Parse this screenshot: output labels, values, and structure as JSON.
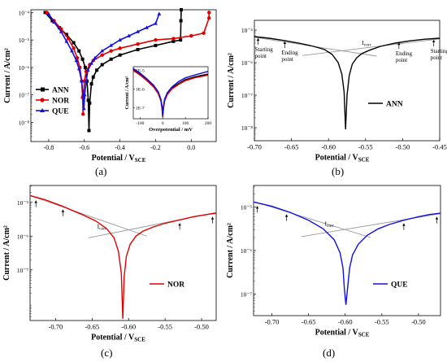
{
  "figure": {
    "panel_labels": [
      "(a)",
      "(b)",
      "(c)",
      "(d)"
    ]
  },
  "chart_data": [
    {
      "id": "a",
      "type": "line",
      "xlabel": "Potential / V",
      "xlabel_sub": "SCE",
      "ylabel": "Current / A/cm²",
      "xlim": [
        -0.9,
        0.14
      ],
      "ylim_log10": [
        -8.7,
        -3.9
      ],
      "log_y": true,
      "xticks": [
        -0.8,
        -0.6,
        -0.4,
        -0.2,
        0.0
      ],
      "xtick_labels": [
        "-0.8",
        "-0.6",
        "-0.4",
        "-0.2",
        "0.0"
      ],
      "yticks_log10": [
        -8,
        -7,
        -6,
        -5,
        -4
      ],
      "ytick_labels": [
        "10⁻⁸",
        "10⁻⁷",
        "10⁻⁶",
        "10⁻⁵",
        "10⁻⁴"
      ],
      "legend": {
        "position": "bottom-left",
        "entries": [
          {
            "label": "ANN",
            "color": "#000000",
            "marker": "square"
          },
          {
            "label": "NOR",
            "color": "#e00000",
            "marker": "circle"
          },
          {
            "label": "QUE",
            "color": "#1010e0",
            "marker": "triangle"
          }
        ]
      },
      "series": [
        {
          "name": "ANN",
          "color": "#000000",
          "x": [
            -0.82,
            -0.78,
            -0.74,
            -0.7,
            -0.66,
            -0.63,
            -0.61,
            -0.595,
            -0.585,
            -0.578,
            -0.574,
            -0.57,
            -0.56,
            -0.55,
            -0.53,
            -0.5,
            -0.45,
            -0.4,
            -0.3,
            -0.2,
            -0.1,
            -0.06,
            -0.058,
            -0.056
          ],
          "logy": [
            -4.0,
            -4.3,
            -4.55,
            -4.8,
            -5.1,
            -5.4,
            -5.7,
            -6.0,
            -6.5,
            -7.2,
            -8.3,
            -7.3,
            -6.6,
            -6.35,
            -6.1,
            -5.9,
            -5.7,
            -5.55,
            -5.35,
            -5.2,
            -5.05,
            -5.0,
            -4.3,
            -3.9
          ]
        },
        {
          "name": "NOR",
          "color": "#e00000",
          "x": [
            -0.81,
            -0.77,
            -0.73,
            -0.69,
            -0.66,
            -0.64,
            -0.625,
            -0.615,
            -0.61,
            -0.607,
            -0.604,
            -0.6,
            -0.59,
            -0.57,
            -0.55,
            -0.5,
            -0.45,
            -0.4,
            -0.3,
            -0.2,
            -0.1,
            0.0,
            0.07,
            0.1,
            0.1
          ],
          "logy": [
            -4.0,
            -4.3,
            -4.6,
            -4.95,
            -5.3,
            -5.65,
            -6.0,
            -6.5,
            -7.1,
            -7.7,
            -7.1,
            -6.5,
            -6.15,
            -5.9,
            -5.75,
            -5.55,
            -5.4,
            -5.3,
            -5.15,
            -5.0,
            -4.95,
            -4.85,
            -4.75,
            -4.2,
            -4.0
          ]
        },
        {
          "name": "QUE",
          "color": "#1010e0",
          "x": [
            -0.8,
            -0.77,
            -0.73,
            -0.7,
            -0.67,
            -0.645,
            -0.63,
            -0.615,
            -0.607,
            -0.602,
            -0.598,
            -0.59,
            -0.58,
            -0.56,
            -0.54,
            -0.5,
            -0.45,
            -0.4,
            -0.35,
            -0.3,
            -0.25,
            -0.2,
            -0.18
          ],
          "logy": [
            -4.05,
            -4.35,
            -4.7,
            -5.05,
            -5.4,
            -5.75,
            -6.05,
            -6.5,
            -7.0,
            -7.5,
            -7.0,
            -6.5,
            -6.1,
            -5.85,
            -5.65,
            -5.4,
            -5.2,
            -5.0,
            -4.85,
            -4.7,
            -4.55,
            -4.4,
            -4.05
          ]
        }
      ],
      "inset": {
        "xlabel": "Overpotential / mV",
        "ylabel": "Current / A/cm²",
        "xlim": [
          -130,
          200
        ],
        "ylim_log10": [
          -7.6,
          -4.8
        ],
        "xticks": [
          -100,
          0,
          100,
          200
        ],
        "xtick_labels": [
          "-100",
          "0",
          "100",
          "200"
        ],
        "yticks_log10": [
          -7,
          -6,
          -5
        ],
        "ytick_labels": [
          "1E-7",
          "1E-6",
          "1E-5"
        ],
        "series": [
          {
            "name": "ANN",
            "color": "#000000",
            "x": [
              -130,
              -100,
              -70,
              -40,
              -20,
              -8,
              -3,
              0,
              3,
              8,
              20,
              40,
              70,
              100,
              140,
              200
            ],
            "logy": [
              -4.95,
              -5.2,
              -5.5,
              -5.85,
              -6.2,
              -6.6,
              -7.0,
              -7.5,
              -7.0,
              -6.6,
              -6.25,
              -5.95,
              -5.7,
              -5.5,
              -5.35,
              -5.2
            ]
          },
          {
            "name": "NOR",
            "color": "#e00000",
            "x": [
              -130,
              -100,
              -70,
              -40,
              -20,
              -8,
              -3,
              0,
              3,
              8,
              20,
              40,
              70,
              100,
              140,
              200
            ],
            "logy": [
              -5.0,
              -5.25,
              -5.55,
              -5.9,
              -6.25,
              -6.65,
              -7.05,
              -7.45,
              -7.05,
              -6.65,
              -6.3,
              -6.0,
              -5.75,
              -5.55,
              -5.4,
              -5.25
            ]
          },
          {
            "name": "QUE",
            "color": "#1010e0",
            "x": [
              -130,
              -100,
              -70,
              -40,
              -20,
              -8,
              -3,
              0,
              3,
              8,
              20,
              40,
              70,
              100,
              140,
              200
            ],
            "logy": [
              -4.9,
              -5.15,
              -5.45,
              -5.8,
              -6.15,
              -6.55,
              -6.95,
              -7.4,
              -6.95,
              -6.55,
              -6.2,
              -5.9,
              -5.6,
              -5.4,
              -5.25,
              -5.05
            ]
          }
        ]
      }
    },
    {
      "id": "b",
      "type": "line",
      "xlabel": "Potential / V",
      "xlabel_sub": "SCE",
      "ylabel": "Current / A/cm²",
      "xlim": [
        -0.7,
        -0.45
      ],
      "ylim_log10": [
        -8.4,
        -4.7
      ],
      "log_y": true,
      "xticks": [
        -0.7,
        -0.65,
        -0.6,
        -0.55,
        -0.5,
        -0.45
      ],
      "xtick_labels": [
        "-0.70",
        "-0.65",
        "-0.60",
        "-0.55",
        "-0.50",
        "-0.45"
      ],
      "yticks_log10": [
        -8,
        -7,
        -6,
        -5
      ],
      "ytick_labels": [
        "10⁻⁸",
        "10⁻⁷",
        "10⁻⁶",
        "10⁻⁵"
      ],
      "legend": {
        "position": "center-right",
        "entries": [
          {
            "label": "ANN",
            "color": "#000000"
          }
        ]
      },
      "series": [
        {
          "name": "ANN",
          "color": "#000000",
          "x": [
            -0.7,
            -0.68,
            -0.66,
            -0.64,
            -0.62,
            -0.605,
            -0.595,
            -0.587,
            -0.582,
            -0.579,
            -0.577,
            -0.575,
            -0.572,
            -0.568,
            -0.562,
            -0.555,
            -0.545,
            -0.53,
            -0.51,
            -0.49,
            -0.47,
            -0.45
          ],
          "logy": [
            -5.2,
            -5.25,
            -5.32,
            -5.4,
            -5.5,
            -5.6,
            -5.75,
            -6.0,
            -6.35,
            -6.9,
            -8.05,
            -7.0,
            -6.4,
            -6.05,
            -5.85,
            -5.72,
            -5.62,
            -5.5,
            -5.4,
            -5.33,
            -5.28,
            -5.25
          ]
        }
      ],
      "tafel_lines": [
        {
          "x": [
            -0.7,
            -0.535
          ],
          "logy": [
            -5.22,
            -5.8
          ]
        },
        {
          "x": [
            -0.635,
            -0.45
          ],
          "logy": [
            -5.78,
            -5.27
          ]
        }
      ],
      "annotations": [
        {
          "text": "Starting",
          "text2": "point",
          "x": -0.695,
          "logy": -5.2
        },
        {
          "text": "Ending",
          "text2": "point",
          "x": -0.659,
          "logy": -5.3
        },
        {
          "text": "I",
          "sub": "corr",
          "x": -0.555,
          "logy": -5.53
        },
        {
          "text": "Ending",
          "text2": "point",
          "x": -0.505,
          "logy": -5.33
        },
        {
          "text": "Starting",
          "text2": "point",
          "x": -0.458,
          "logy": -5.25
        }
      ]
    },
    {
      "id": "c",
      "type": "line",
      "xlabel": "Potential / V",
      "xlabel_sub": "SCE",
      "ylabel": "Current / A/cm²",
      "xlim": [
        -0.735,
        -0.48
      ],
      "ylim_log10": [
        -8.5,
        -4.5
      ],
      "log_y": true,
      "xticks": [
        -0.7,
        -0.65,
        -0.6,
        -0.55,
        -0.5
      ],
      "xtick_labels": [
        "-0.70",
        "-0.65",
        "-0.60",
        "-0.55",
        "-0.50"
      ],
      "yticks_log10": [
        -7,
        -6,
        -5
      ],
      "ytick_labels": [
        "10⁻⁷",
        "10⁻⁶",
        "10⁻⁵"
      ],
      "legend": {
        "position": "center-right",
        "entries": [
          {
            "label": "NOR",
            "color": "#e00000"
          }
        ]
      },
      "series": [
        {
          "name": "NOR",
          "color": "#e00000",
          "x": [
            -0.735,
            -0.715,
            -0.69,
            -0.665,
            -0.645,
            -0.63,
            -0.62,
            -0.614,
            -0.61,
            -0.608,
            -0.606,
            -0.603,
            -0.598,
            -0.59,
            -0.58,
            -0.565,
            -0.55,
            -0.53,
            -0.51,
            -0.49,
            -0.48
          ],
          "logy": [
            -4.8,
            -4.92,
            -5.12,
            -5.35,
            -5.55,
            -5.78,
            -6.05,
            -6.45,
            -7.1,
            -8.45,
            -7.2,
            -6.6,
            -6.25,
            -6.0,
            -5.85,
            -5.72,
            -5.62,
            -5.52,
            -5.42,
            -5.35,
            -5.32
          ]
        }
      ],
      "tafel_lines": [
        {
          "x": [
            -0.735,
            -0.575
          ],
          "logy": [
            -4.8,
            -6.0
          ]
        },
        {
          "x": [
            -0.655,
            -0.48
          ],
          "logy": [
            -6.05,
            -5.3
          ]
        }
      ],
      "annotations": [
        {
          "text": "I",
          "sub": "corr",
          "x": -0.643,
          "logy": -5.78
        }
      ],
      "arrows_x": [
        -0.727,
        -0.69,
        -0.53,
        -0.485
      ]
    },
    {
      "id": "d",
      "type": "line",
      "xlabel": "Potential / V",
      "xlabel_sub": "SCE",
      "ylabel": "Current / A/cm²",
      "xlim": [
        -0.725,
        -0.47
      ],
      "ylim_log10": [
        -7.5,
        -4.5
      ],
      "log_y": true,
      "xticks": [
        -0.7,
        -0.65,
        -0.6,
        -0.55,
        -0.5
      ],
      "xtick_labels": [
        "-0.70",
        "-0.65",
        "-0.60",
        "-0.55",
        "-0.50"
      ],
      "yticks_log10": [
        -7,
        -6,
        -5
      ],
      "ytick_labels": [
        "10⁻⁷",
        "10⁻⁶",
        "10⁻⁵"
      ],
      "legend": {
        "position": "center-right",
        "entries": [
          {
            "label": "QUE",
            "color": "#1010e0"
          }
        ]
      },
      "series": [
        {
          "name": "QUE",
          "color": "#1010e0",
          "x": [
            -0.725,
            -0.7,
            -0.675,
            -0.65,
            -0.63,
            -0.615,
            -0.607,
            -0.603,
            -0.601,
            -0.599,
            -0.597,
            -0.594,
            -0.59,
            -0.582,
            -0.57,
            -0.555,
            -0.54,
            -0.52,
            -0.5,
            -0.485,
            -0.47
          ],
          "logy": [
            -4.88,
            -4.98,
            -5.12,
            -5.3,
            -5.5,
            -5.75,
            -6.05,
            -6.4,
            -6.9,
            -7.25,
            -6.9,
            -6.4,
            -6.1,
            -5.85,
            -5.65,
            -5.5,
            -5.4,
            -5.3,
            -5.22,
            -5.17,
            -5.14
          ]
        }
      ],
      "tafel_lines": [
        {
          "x": [
            -0.725,
            -0.565
          ],
          "logy": [
            -4.87,
            -5.7
          ]
        },
        {
          "x": [
            -0.66,
            -0.47
          ],
          "logy": [
            -5.68,
            -5.15
          ]
        }
      ],
      "annotations": [
        {
          "text": "I",
          "sub": "corr",
          "x": -0.628,
          "logy": -5.43
        }
      ],
      "arrows_x": [
        -0.72,
        -0.68,
        -0.52,
        -0.475
      ]
    }
  ]
}
